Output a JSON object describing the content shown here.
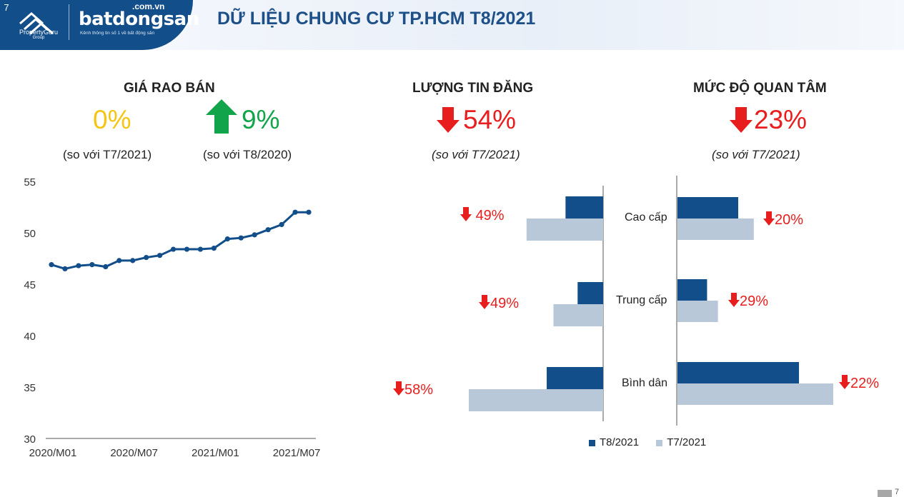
{
  "header": {
    "slide_number": "7",
    "brand_pg": "PropertyGuru",
    "brand_pg_sub": "Group",
    "brand_bds_domain": ".com.vn",
    "brand_bds_name": "batdongsan",
    "brand_bds_tagline": "Kênh thông tin số 1 về bất động sản",
    "title": "DỮ LIỆU CHUNG CƯ TP.HCM T8/2021"
  },
  "kpis": {
    "price": {
      "title": "GIÁ RAO BÁN",
      "mom_value": "0%",
      "mom_note": "(so với T7/2021)",
      "yoy_value": "9%",
      "yoy_note": "(so với T8/2020)",
      "yoy_direction": "up"
    },
    "listings": {
      "title": "LƯỢNG TIN ĐĂNG",
      "value": "54%",
      "note": "(so với T7/2021)",
      "direction": "down"
    },
    "interest": {
      "title": "MỨC ĐỘ QUAN TÂM",
      "value": "23%",
      "note": "(so với T7/2021)",
      "direction": "down"
    }
  },
  "colors": {
    "brand_blue": "#124e8a",
    "title_blue": "#1d4f88",
    "yellow": "#f6c512",
    "green": "#12a44a",
    "red": "#e81e1e",
    "series_current": "#124e8a",
    "series_previous": "#b8c8d8"
  },
  "chart_data": [
    {
      "type": "line",
      "x": [
        "2020/M01",
        "2020/M02",
        "2020/M03",
        "2020/M04",
        "2020/M05",
        "2020/M06",
        "2020/M07",
        "2020/M08",
        "2020/M09",
        "2020/M10",
        "2020/M11",
        "2020/M12",
        "2021/M01",
        "2021/M02",
        "2021/M03",
        "2021/M04",
        "2021/M05",
        "2021/M06",
        "2021/M07",
        "2021/M08"
      ],
      "x_tick_labels": [
        "2020/M01",
        "2020/M07",
        "2021/M01",
        "2021/M07"
      ],
      "y_ticks": [
        "55",
        "50",
        "45",
        "40",
        "35",
        "30"
      ],
      "series": [
        {
          "values": [
            46.9,
            46.5,
            46.8,
            46.9,
            46.7,
            47.3,
            47.3,
            47.6,
            47.8,
            48.4,
            48.4,
            48.4,
            48.5,
            49.4,
            49.5,
            49.8,
            50.3,
            50.8,
            52.0,
            52.0
          ]
        }
      ],
      "ylim": [
        30,
        55
      ],
      "grid": false,
      "color": "#124e8a"
    },
    {
      "type": "bar",
      "orientation": "horizontal",
      "title": "",
      "categories": [
        "Cao cấp",
        "Trung cấp",
        "Bình dân"
      ],
      "series": [
        {
          "name": "T8/2021",
          "values": [
            0.28,
            0.19,
            0.42
          ]
        },
        {
          "name": "T7/2021",
          "values": [
            0.57,
            0.37,
            1.0
          ]
        }
      ],
      "change_labels": [
        "49%",
        "49%",
        "58%"
      ],
      "direction": "down"
    },
    {
      "type": "bar",
      "orientation": "horizontal",
      "title": "",
      "categories": [
        "Cao cấp",
        "Trung cấp",
        "Bình dân"
      ],
      "series": [
        {
          "name": "T8/2021",
          "values": [
            0.39,
            0.19,
            0.78
          ]
        },
        {
          "name": "T7/2021",
          "values": [
            0.49,
            0.26,
            1.0
          ]
        }
      ],
      "change_labels": [
        "20%",
        "29%",
        "22%"
      ],
      "direction": "down"
    }
  ],
  "legend": {
    "items": [
      "T8/2021",
      "T7/2021"
    ]
  },
  "footer": {
    "page": "7"
  }
}
